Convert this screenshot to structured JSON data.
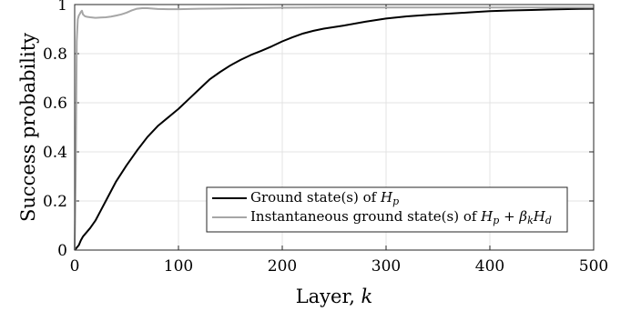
{
  "chart_data": {
    "type": "line",
    "xlabel": "Layer, k",
    "ylabel": "Success probability",
    "xlim": [
      0,
      500
    ],
    "ylim": [
      0,
      1
    ],
    "xticks": [
      "0",
      "100",
      "200",
      "300",
      "400",
      "500"
    ],
    "yticks": [
      "0",
      "0.2",
      "0.4",
      "0.6",
      "0.8",
      "1"
    ],
    "grid": true,
    "legend_position": "bottom-right",
    "series": [
      {
        "name": "Ground state(s) of H_p",
        "color": "#000000",
        "x": [
          0,
          2,
          4,
          6,
          8,
          10,
          15,
          20,
          25,
          30,
          40,
          50,
          60,
          70,
          80,
          90,
          100,
          110,
          120,
          130,
          140,
          150,
          160,
          170,
          180,
          190,
          200,
          210,
          220,
          230,
          240,
          260,
          280,
          300,
          320,
          340,
          360,
          380,
          400,
          420,
          440,
          460,
          480,
          500
        ],
        "y": [
          0.0,
          0.01,
          0.02,
          0.04,
          0.055,
          0.065,
          0.09,
          0.12,
          0.16,
          0.2,
          0.28,
          0.345,
          0.405,
          0.46,
          0.505,
          0.54,
          0.575,
          0.615,
          0.655,
          0.695,
          0.725,
          0.752,
          0.775,
          0.795,
          0.812,
          0.83,
          0.85,
          0.867,
          0.882,
          0.893,
          0.902,
          0.915,
          0.93,
          0.943,
          0.952,
          0.958,
          0.963,
          0.968,
          0.973,
          0.976,
          0.978,
          0.98,
          0.982,
          0.983
        ]
      },
      {
        "name": "Instantaneous ground state(s) of H_p + β_k H_d",
        "color": "#a6a6a6",
        "x": [
          0,
          1,
          2,
          3,
          4,
          5,
          6,
          7,
          8,
          10,
          12,
          15,
          20,
          25,
          30,
          35,
          40,
          45,
          50,
          55,
          60,
          65,
          70,
          80,
          90,
          100,
          120,
          140,
          160,
          180,
          200,
          250,
          300,
          350,
          400,
          450,
          500
        ],
        "y": [
          0.0,
          0.3,
          0.85,
          0.94,
          0.955,
          0.962,
          0.97,
          0.975,
          0.96,
          0.952,
          0.95,
          0.948,
          0.946,
          0.947,
          0.948,
          0.951,
          0.955,
          0.96,
          0.967,
          0.976,
          0.983,
          0.985,
          0.985,
          0.982,
          0.981,
          0.981,
          0.983,
          0.984,
          0.985,
          0.986,
          0.987,
          0.988,
          0.988,
          0.988,
          0.988,
          0.988,
          0.988
        ]
      }
    ],
    "legend": {
      "entry1": {
        "prefix": "Ground state(s) of ",
        "math_base": "H",
        "math_sub": "p"
      },
      "entry2": {
        "prefix": "Instantaneous ground state(s) of "
      }
    }
  }
}
